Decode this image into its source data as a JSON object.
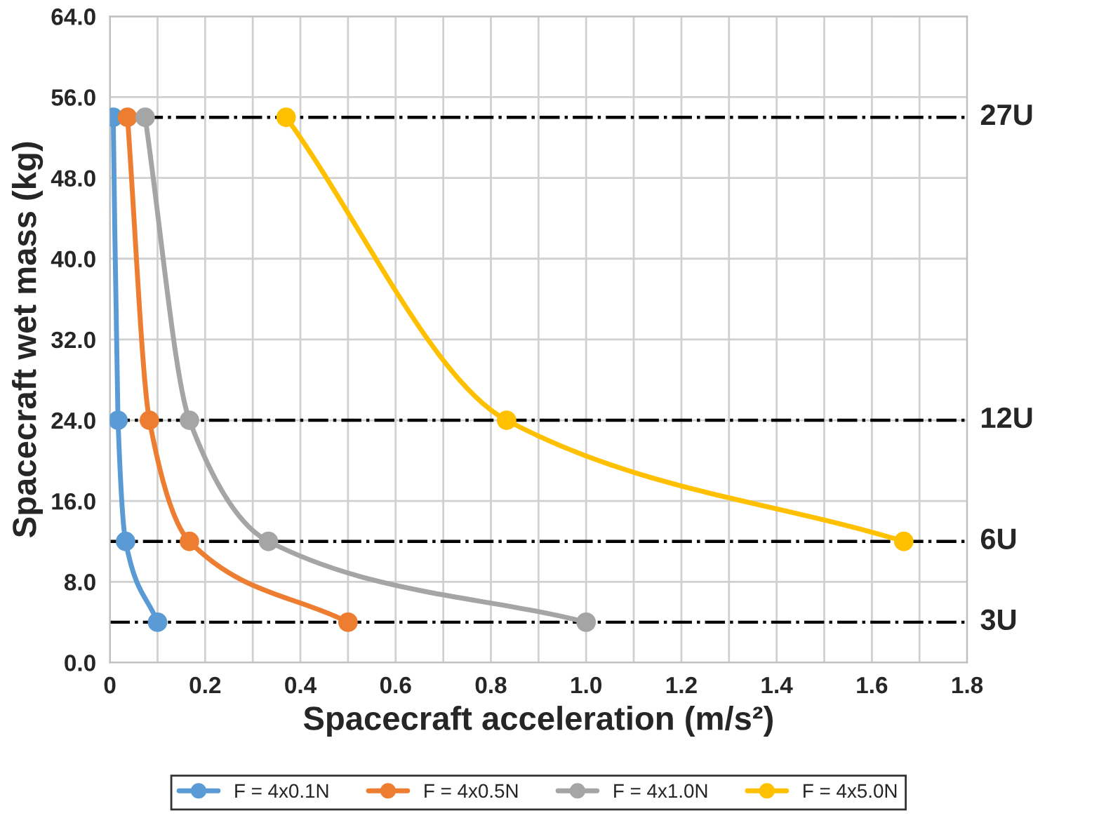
{
  "chart_data": {
    "type": "line",
    "xlabel": "Spacecraft acceleration (m/s²)",
    "ylabel": "Spacecraft wet mass (kg)",
    "xlim": [
      0,
      1.8
    ],
    "ylim": [
      0,
      64
    ],
    "xticks": [
      0,
      0.2,
      0.4,
      0.6,
      0.8,
      {
        "value": 1.0,
        "label": "1.0"
      },
      1.2,
      1.4,
      1.6,
      1.8
    ],
    "yticks": [
      {
        "value": 0,
        "label": "0.0"
      },
      {
        "value": 8,
        "label": "8.0"
      },
      {
        "value": 16,
        "label": "16.0"
      },
      {
        "value": 24,
        "label": "24.0"
      },
      {
        "value": 32,
        "label": "32.0"
      },
      {
        "value": 40,
        "label": "40.0"
      },
      {
        "value": 48,
        "label": "48.0"
      },
      {
        "value": 56,
        "label": "56.0"
      },
      {
        "value": 64,
        "label": "64.0"
      }
    ],
    "grid": true,
    "legend": "bottom",
    "marker": "circle",
    "line_style": "solid",
    "series": [
      {
        "name": "F = 4x0.1N",
        "color": "#5b9bd5",
        "x": [
          0.1,
          0.033,
          0.017,
          0.007
        ],
        "values": [
          4,
          12,
          24,
          54
        ]
      },
      {
        "name": "F = 4x0.5N",
        "color": "#ed7d31",
        "x": [
          0.5,
          0.167,
          0.083,
          0.037
        ],
        "values": [
          4,
          12,
          24,
          54
        ]
      },
      {
        "name": "F = 4x1.0N",
        "color": "#a5a5a5",
        "x": [
          1.0,
          0.333,
          0.167,
          0.074
        ],
        "values": [
          4,
          12,
          24,
          54
        ]
      },
      {
        "name": "F = 4x5.0N",
        "color": "#ffc000",
        "x": [
          1.667,
          0.833,
          0.37
        ],
        "values": [
          12,
          24,
          54
        ]
      }
    ],
    "ref_lines": [
      {
        "axis": "y",
        "value": 4,
        "label": "3U",
        "color": "#000000",
        "line_style": "dashdot"
      },
      {
        "axis": "y",
        "value": 12,
        "label": "6U",
        "color": "#000000",
        "line_style": "dashdot"
      },
      {
        "axis": "y",
        "value": 24,
        "label": "12U",
        "color": "#000000",
        "line_style": "dashdot"
      },
      {
        "axis": "y",
        "value": 54,
        "label": "27U",
        "color": "#000000",
        "line_style": "dashdot"
      }
    ]
  }
}
